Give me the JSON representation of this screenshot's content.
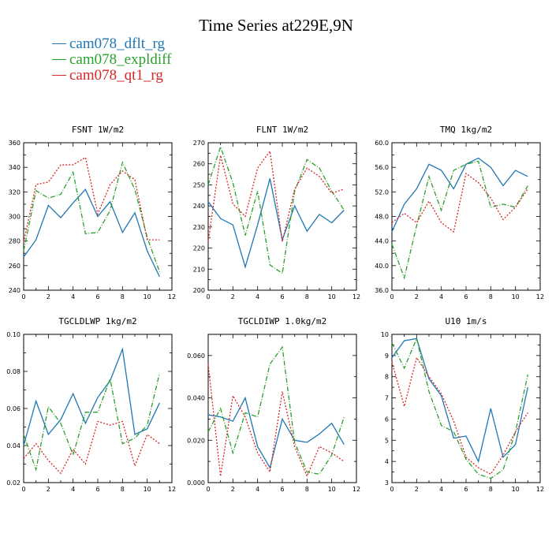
{
  "title": "Time Series at229E,9N",
  "legend": [
    {
      "name": "cam078_dflt_rg",
      "color": "#1f77b4",
      "dash": "none"
    },
    {
      "name": "cam078_expldiff",
      "color": "#2ca02c",
      "dash": "6,2,1,2"
    },
    {
      "name": "cam078_qt1_rg",
      "color": "#d62728",
      "dash": "2,2"
    }
  ],
  "chart_data": [
    {
      "type": "line",
      "title": "FSNT  1W/m2",
      "xlim": [
        0,
        12
      ],
      "xticks": [
        0,
        2,
        4,
        6,
        8,
        10,
        12
      ],
      "ylim": [
        240,
        360
      ],
      "yticks": [
        "240",
        "260",
        "280",
        "300",
        "320",
        "340",
        "360"
      ],
      "x": [
        0,
        1,
        2,
        3,
        4,
        5,
        6,
        7,
        8,
        9,
        10,
        11
      ],
      "series": [
        {
          "name": "cam078_dflt_rg",
          "values": [
            267,
            281,
            309,
            299,
            311,
            322,
            300,
            312,
            287,
            303,
            272,
            251
          ]
        },
        {
          "name": "cam078_expldiff",
          "values": [
            272,
            321,
            315,
            318,
            336,
            286,
            287,
            305,
            344,
            322,
            283,
            255
          ]
        },
        {
          "name": "cam078_qt1_rg",
          "values": [
            279,
            326,
            328,
            342,
            342,
            348,
            302,
            326,
            337,
            330,
            281,
            281
          ]
        }
      ]
    },
    {
      "type": "line",
      "title": "FLNT  1W/m2",
      "xlim": [
        0,
        12
      ],
      "xticks": [
        0,
        2,
        4,
        6,
        8,
        10,
        12
      ],
      "ylim": [
        200,
        270
      ],
      "yticks": [
        "200",
        "210",
        "220",
        "230",
        "240",
        "250",
        "260",
        "270"
      ],
      "x": [
        0,
        1,
        2,
        3,
        4,
        5,
        6,
        7,
        8,
        9,
        10,
        11
      ],
      "series": [
        {
          "name": "cam078_dflt_rg",
          "values": [
            242,
            234,
            231,
            211,
            231,
            253,
            224,
            240,
            228,
            236,
            232,
            238
          ]
        },
        {
          "name": "cam078_expldiff",
          "values": [
            250,
            268,
            251,
            226,
            247,
            212,
            208,
            247,
            262,
            258,
            247,
            238
          ]
        },
        {
          "name": "cam078_qt1_rg",
          "values": [
            223,
            264,
            241,
            235,
            258,
            266,
            223,
            248,
            258,
            254,
            246,
            248
          ]
        }
      ]
    },
    {
      "type": "line",
      "title": "TMQ  1kg/m2",
      "xlim": [
        0,
        12
      ],
      "xticks": [
        0,
        2,
        4,
        6,
        8,
        10,
        12
      ],
      "ylim": [
        36,
        60
      ],
      "yticks": [
        "36.0",
        "40.0",
        "44.0",
        "48.0",
        "52.0",
        "56.0",
        "60.0"
      ],
      "x": [
        0,
        1,
        2,
        3,
        4,
        5,
        6,
        7,
        8,
        9,
        10,
        11
      ],
      "series": [
        {
          "name": "cam078_dflt_rg",
          "values": [
            45.5,
            50.0,
            52.5,
            56.5,
            55.5,
            52.5,
            56.5,
            57.5,
            56.0,
            53.0,
            55.5,
            54.5
          ]
        },
        {
          "name": "cam078_expldiff",
          "values": [
            43.5,
            38.0,
            46.5,
            54.5,
            49.0,
            55.5,
            56.5,
            57.0,
            49.5,
            50.0,
            49.5,
            53.0
          ]
        },
        {
          "name": "cam078_qt1_rg",
          "values": [
            47.0,
            48.5,
            47.0,
            50.5,
            47.0,
            45.5,
            55.0,
            53.5,
            51.0,
            47.5,
            49.5,
            52.5
          ]
        }
      ]
    },
    {
      "type": "line",
      "title": "TGCLDLWP  1kg/m2",
      "xlim": [
        0,
        12
      ],
      "xticks": [
        0,
        2,
        4,
        6,
        8,
        10,
        12
      ],
      "ylim": [
        0.02,
        0.1
      ],
      "yticks": [
        "0.02",
        "0.04",
        "0.06",
        "0.08",
        "0.10"
      ],
      "x": [
        0,
        1,
        2,
        3,
        4,
        5,
        6,
        7,
        8,
        9,
        10,
        11
      ],
      "series": [
        {
          "name": "cam078_dflt_rg",
          "values": [
            0.04,
            0.064,
            0.046,
            0.054,
            0.068,
            0.052,
            0.066,
            0.075,
            0.092,
            0.046,
            0.049,
            0.063
          ]
        },
        {
          "name": "cam078_expldiff",
          "values": [
            0.046,
            0.027,
            0.061,
            0.052,
            0.035,
            0.058,
            0.058,
            0.076,
            0.041,
            0.044,
            0.051,
            0.079
          ]
        },
        {
          "name": "cam078_qt1_rg",
          "values": [
            0.033,
            0.041,
            0.032,
            0.025,
            0.038,
            0.03,
            0.053,
            0.051,
            0.053,
            0.029,
            0.046,
            0.041
          ]
        }
      ]
    },
    {
      "type": "line",
      "title": "TGCLDIWP  1.0kg/m2",
      "xlim": [
        0,
        12
      ],
      "xticks": [
        0,
        2,
        4,
        6,
        8,
        10,
        12
      ],
      "ylim": [
        0,
        0.07
      ],
      "yticks": [
        "0.000",
        "0.020",
        "0.040",
        "0.060"
      ],
      "ytick_values": [
        0,
        0.02,
        0.04,
        0.06
      ],
      "x": [
        0,
        1,
        2,
        3,
        4,
        5,
        6,
        7,
        8,
        9,
        10,
        11
      ],
      "series": [
        {
          "name": "cam078_dflt_rg",
          "values": [
            0.032,
            0.031,
            0.029,
            0.04,
            0.017,
            0.007,
            0.03,
            0.02,
            0.019,
            0.023,
            0.028,
            0.018
          ]
        },
        {
          "name": "cam078_expldiff",
          "values": [
            0.024,
            0.035,
            0.014,
            0.033,
            0.031,
            0.056,
            0.064,
            0.019,
            0.005,
            0.004,
            0.013,
            0.031
          ]
        },
        {
          "name": "cam078_qt1_rg",
          "values": [
            0.056,
            0.003,
            0.041,
            0.031,
            0.014,
            0.005,
            0.043,
            0.017,
            0.003,
            0.017,
            0.014,
            0.01
          ]
        }
      ]
    },
    {
      "type": "line",
      "title": "U10  1m/s",
      "xlim": [
        0,
        12
      ],
      "xticks": [
        0,
        2,
        4,
        6,
        8,
        10,
        12
      ],
      "ylim": [
        3,
        10
      ],
      "yticks": [
        "3",
        "4",
        "5",
        "6",
        "7",
        "8",
        "9",
        "10"
      ],
      "x": [
        0,
        1,
        2,
        3,
        4,
        5,
        6,
        7,
        8,
        9,
        10,
        11
      ],
      "series": [
        {
          "name": "cam078_dflt_rg",
          "values": [
            8.9,
            9.7,
            9.8,
            7.9,
            7.1,
            5.1,
            5.2,
            4.0,
            6.5,
            4.2,
            4.8,
            7.5
          ]
        },
        {
          "name": "cam078_expldiff",
          "values": [
            9.6,
            8.4,
            9.8,
            7.3,
            5.7,
            5.4,
            4.1,
            3.4,
            3.2,
            3.6,
            5.4,
            8.1
          ]
        },
        {
          "name": "cam078_qt1_rg",
          "values": [
            8.7,
            6.6,
            8.9,
            8.0,
            7.2,
            5.9,
            4.2,
            3.7,
            3.4,
            4.3,
            5.4,
            6.3
          ]
        }
      ]
    }
  ]
}
